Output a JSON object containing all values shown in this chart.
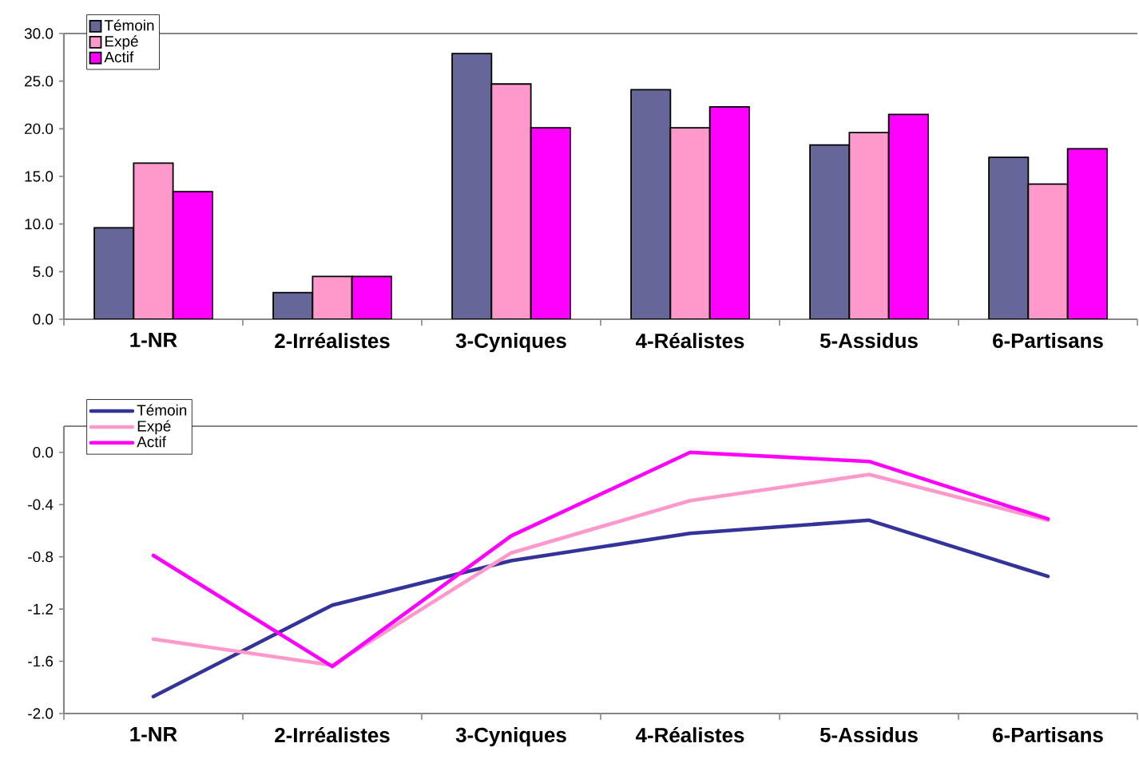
{
  "chart_data": [
    {
      "type": "bar",
      "categories": [
        "1-NR",
        "2-Irréalistes",
        "3-Cyniques",
        "4-Réalistes",
        "5-Assidus",
        "6-Partisans"
      ],
      "series": [
        {
          "name": "Témoin",
          "color": "#666699",
          "values": [
            9.6,
            2.8,
            27.9,
            24.1,
            18.3,
            17.0
          ]
        },
        {
          "name": "Expé",
          "color": "#ff99cc",
          "values": [
            16.4,
            4.5,
            24.7,
            20.1,
            19.6,
            14.2
          ]
        },
        {
          "name": "Actif",
          "color": "#ff00ff",
          "values": [
            13.4,
            4.5,
            20.1,
            22.3,
            21.5,
            17.9
          ]
        }
      ],
      "ylim": [
        0,
        30
      ],
      "yticks": [
        {
          "value": 0,
          "label": "0.0"
        },
        {
          "value": 5,
          "label": "5.0"
        },
        {
          "value": 10,
          "label": "10.0"
        },
        {
          "value": 15,
          "label": "15.0"
        },
        {
          "value": 20,
          "label": "20.0"
        },
        {
          "value": 25,
          "label": "25.0"
        },
        {
          "value": 30,
          "label": "30.0"
        }
      ],
      "legend": "top left"
    },
    {
      "type": "line",
      "categories": [
        "1-NR",
        "2-Irréalistes",
        "3-Cyniques",
        "4-Réalistes",
        "5-Assidus",
        "6-Partisans"
      ],
      "series": [
        {
          "name": "Témoin",
          "color": "#333399",
          "values": [
            -1.87,
            -1.17,
            -0.83,
            -0.62,
            -0.52,
            -0.95
          ]
        },
        {
          "name": "Expé",
          "color": "#ff99cc",
          "values": [
            -1.43,
            -1.63,
            -0.77,
            -0.37,
            -0.17,
            -0.52
          ]
        },
        {
          "name": "Actif",
          "color": "#ff00ff",
          "values": [
            -0.79,
            -1.64,
            -0.64,
            0.0,
            -0.07,
            -0.51
          ]
        }
      ],
      "ylim": [
        -2.0,
        0.2
      ],
      "yticks": [
        {
          "value": -2.0,
          "label": "-2.0"
        },
        {
          "value": -1.6,
          "label": "-1.6"
        },
        {
          "value": -1.2,
          "label": "-1.2"
        },
        {
          "value": -0.8,
          "label": "-0.8"
        },
        {
          "value": -0.4,
          "label": "-0.4"
        },
        {
          "value": 0,
          "label": "0.0"
        }
      ],
      "legend": "top left"
    }
  ]
}
